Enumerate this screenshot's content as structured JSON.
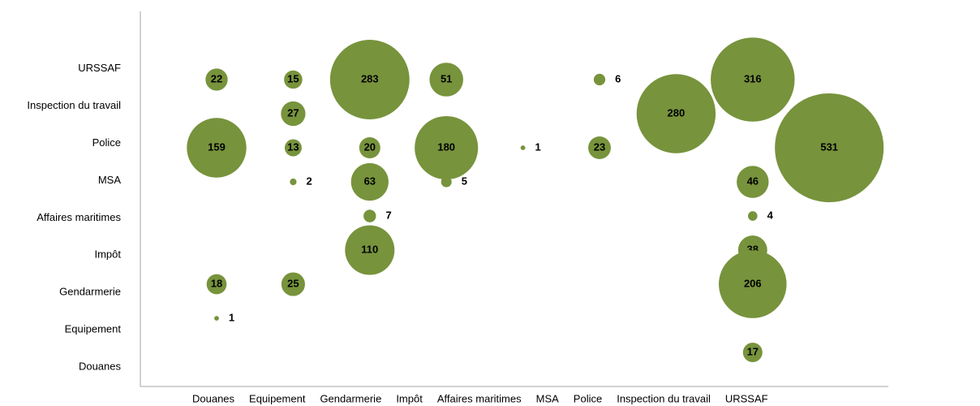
{
  "chart_data": {
    "type": "bubble",
    "x_categories": [
      "Douanes",
      "Equipement",
      "Gendarmerie",
      "Impôt",
      "Affaires maritimes",
      "MSA",
      "Police",
      "Inspection du travail",
      "URSSAF"
    ],
    "y_categories": [
      "Douanes",
      "Equipement",
      "Gendarmerie",
      "Impôt",
      "Affaires maritimes",
      "MSA",
      "Police",
      "Inspection du travail",
      "URSSAF"
    ],
    "color": "#77933c",
    "series": [
      {
        "x": [
          "Douanes",
          "Equipement",
          "Gendarmerie",
          "Impôt",
          "MSA",
          "Inspection du travail",
          "Equipement",
          "Police",
          "Douanes",
          "Equipement",
          "Gendarmerie",
          "Impôt",
          "Affaires maritimes",
          "MSA",
          "URSSAF",
          "Equipement",
          "Gendarmerie",
          "Impôt",
          "Inspection du travail",
          "Gendarmerie",
          "Inspection du travail",
          "Gendarmerie",
          "Inspection du travail",
          "Douanes",
          "Equipement",
          "Inspection du travail",
          "Douanes",
          "Inspection du travail"
        ],
        "y": [
          "URSSAF",
          "URSSAF",
          "URSSAF",
          "URSSAF",
          "URSSAF",
          "URSSAF",
          "Inspection du travail",
          "Inspection du travail",
          "Police",
          "Police",
          "Police",
          "Police",
          "Police",
          "Police",
          "Police",
          "MSA",
          "MSA",
          "MSA",
          "MSA",
          "Affaires maritimes",
          "Affaires maritimes",
          "Impôt",
          "Impôt",
          "Gendarmerie",
          "Gendarmerie",
          "Gendarmerie",
          "Equipement",
          "Douanes"
        ],
        "sizes": [
          22,
          15,
          283,
          51,
          6,
          316,
          27,
          280,
          159,
          13,
          20,
          180,
          1,
          23,
          531,
          2,
          63,
          5,
          46,
          7,
          4,
          110,
          38,
          18,
          25,
          206,
          1,
          17
        ]
      }
    ]
  }
}
